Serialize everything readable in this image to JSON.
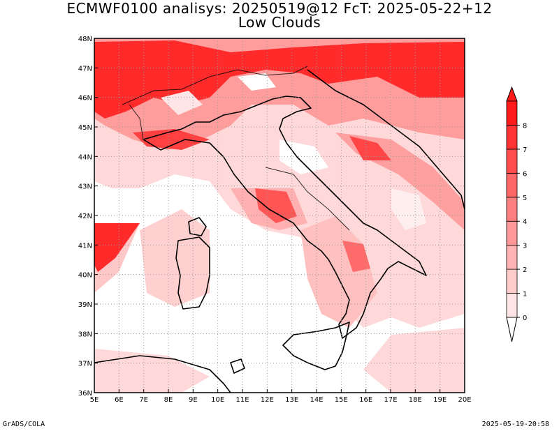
{
  "map": {
    "title_line1": "ECMWF0100 analisys: 20250519@12 FcT: 2025-05-22+12",
    "title_line2": "Low Clouds",
    "lon_labels": [
      "5E",
      "6E",
      "7E",
      "8E",
      "9E",
      "10E",
      "11E",
      "12E",
      "13E",
      "14E",
      "15E",
      "16E",
      "17E",
      "18E",
      "19E",
      "20E"
    ],
    "lat_labels": [
      "48N",
      "47N",
      "46N",
      "45N",
      "44N",
      "43N",
      "42N",
      "41N",
      "40N",
      "39N",
      "38N",
      "37N",
      "36N"
    ],
    "extent": {
      "lon": [
        5,
        20
      ],
      "lat": [
        36,
        48
      ]
    },
    "grid": true,
    "colorbar": {
      "labels": [
        "0",
        "1",
        "2",
        "3",
        "4",
        "5",
        "6",
        "7",
        "8"
      ],
      "colors": [
        "#ffe6e6",
        "#ffcccc",
        "#ffb3b3",
        "#ff9999",
        "#ff8080",
        "#ff6666",
        "#ff4d4d",
        "#ff3333",
        "#ff1a1a"
      ]
    },
    "footer_left": "GrADS/COLA",
    "footer_right": "2025-05-19-20:58"
  }
}
